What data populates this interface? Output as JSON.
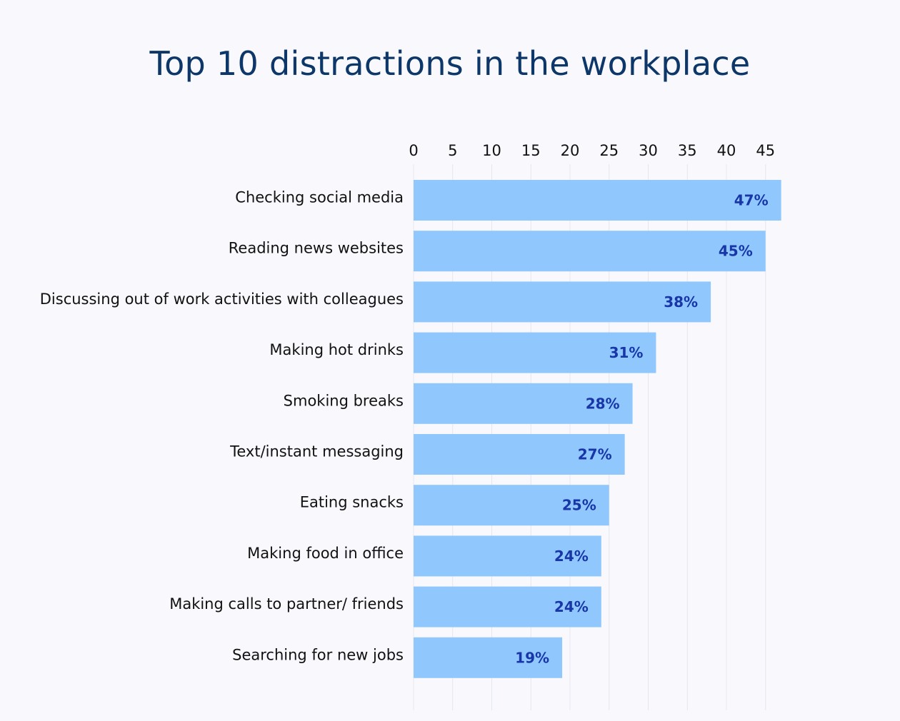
{
  "chart_data": {
    "type": "bar",
    "orientation": "horizontal",
    "title": "Top 10 distractions in the workplace",
    "categories": [
      "Checking social media",
      "Reading news websites",
      "Discussing out of work activities with colleagues",
      "Making hot drinks",
      "Smoking breaks",
      "Text/instant messaging",
      "Eating snacks",
      "Making food in office",
      "Making calls to partner/ friends",
      "Searching for new jobs"
    ],
    "values": [
      47,
      45,
      38,
      31,
      28,
      27,
      25,
      24,
      24,
      19
    ],
    "data_labels": [
      "47%",
      "45%",
      "38%",
      "31%",
      "28%",
      "27%",
      "25%",
      "24%",
      "24%",
      "19%"
    ],
    "x_ticks": [
      0,
      5,
      10,
      15,
      20,
      25,
      30,
      35,
      40,
      45
    ],
    "xlim": [
      0,
      47
    ],
    "axis_position": "top",
    "grid": true,
    "colors": {
      "bar": "#90c8fd",
      "label": "#1836a8",
      "title": "#0d3768"
    }
  }
}
